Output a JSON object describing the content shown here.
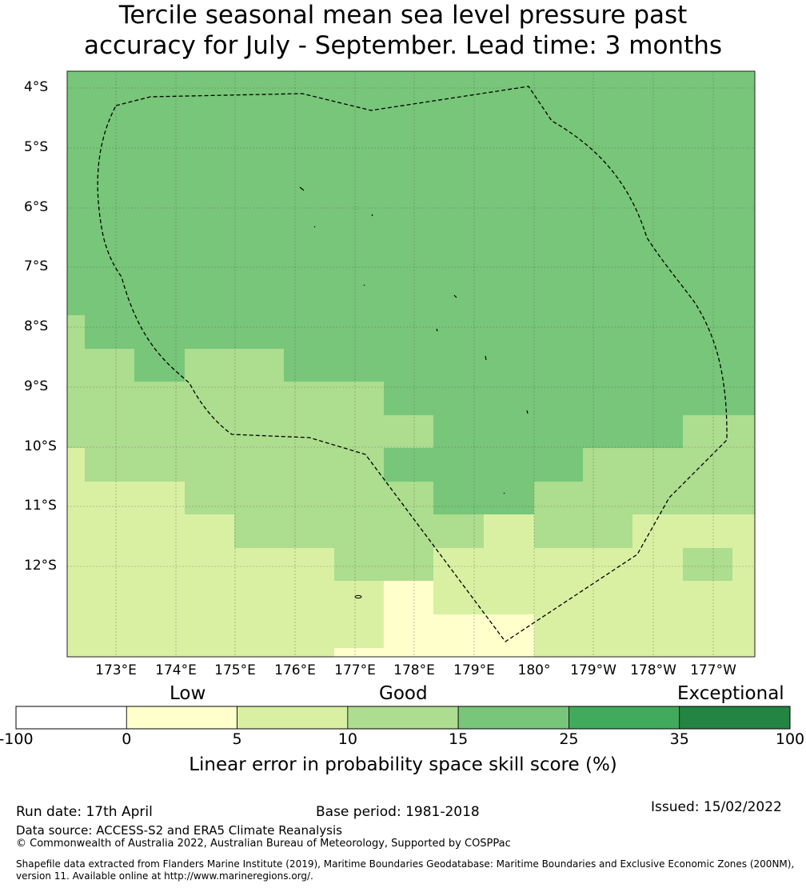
{
  "title_line1": "Tercile seasonal mean sea level pressure past",
  "title_line2": "accuracy for July - September. Lead time: 3 months",
  "lat_labels": [
    "4°S",
    "5°S",
    "6°S",
    "7°S",
    "8°S",
    "9°S",
    "10°S",
    "11°S",
    "12°S"
  ],
  "lon_labels": [
    "173°E",
    "174°E",
    "175°E",
    "176°E",
    "177°E",
    "178°E",
    "179°E",
    "180°",
    "179°W",
    "178°W",
    "177°W"
  ],
  "colorbar": {
    "categories": [
      "Low",
      "Good",
      "Exceptional"
    ],
    "ticks": [
      "-100",
      "0",
      "5",
      "10",
      "15",
      "25",
      "35",
      "100"
    ],
    "bins": [
      {
        "from": -100,
        "to": 0,
        "color": "#ffffff"
      },
      {
        "from": 0,
        "to": 5,
        "color": "#ffffcc"
      },
      {
        "from": 5,
        "to": 10,
        "color": "#d9f0a3"
      },
      {
        "from": 10,
        "to": 15,
        "color": "#addd8e"
      },
      {
        "from": 15,
        "to": 25,
        "color": "#78c679"
      },
      {
        "from": 25,
        "to": 35,
        "color": "#41ab5d"
      },
      {
        "from": 35,
        "to": 100,
        "color": "#238443"
      }
    ],
    "title": "Linear error in probability space skill score (%)"
  },
  "footer": {
    "run_date": "Run date: 17th April",
    "base_period": "Base period: 1981-2018",
    "issued": "Issued: 15/02/2022",
    "data_source": "Data source: ACCESS-S2 and ERA5 Climate Reanalysis",
    "copyright": "© Commonwealth of Australia 2022, Australian Bureau of Meteorology, Supported by COSPPac",
    "shapefile_line1": "Shapefile data extracted from Flanders Marine Institute (2019), Maritime Boundaries Geodatabase: Maritime Boundaries and Exclusive Economic Zones (200NM),",
    "shapefile_line2": "version 11. Available online at http://www.marineregions.org/."
  }
}
